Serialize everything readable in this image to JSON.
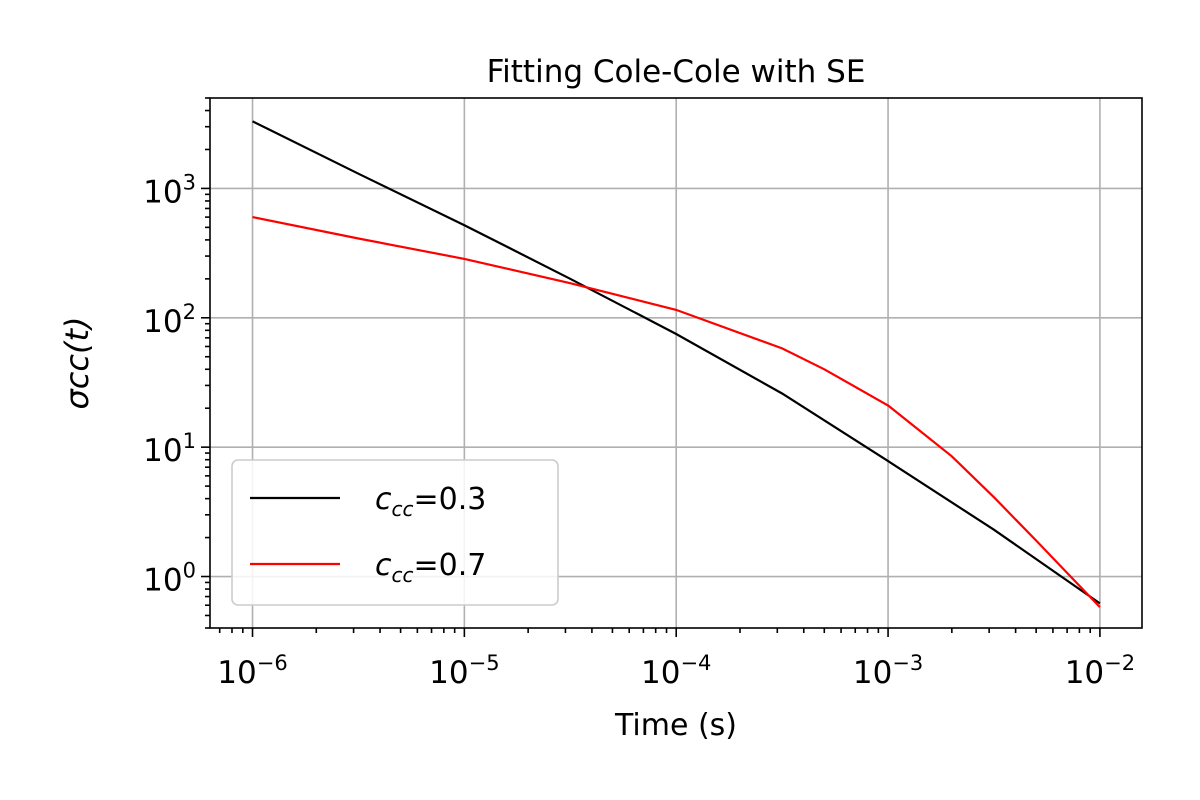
{
  "chart_data": {
    "type": "line",
    "title": "Fitting Cole-Cole with SE",
    "xlabel": "Time (s)",
    "ylabel": "σcc(t)",
    "xscale": "log",
    "yscale": "log",
    "xlim": [
      6.3e-07,
      0.0158
    ],
    "ylim": [
      0.4,
      5000
    ],
    "grid": true,
    "legend_position": "lower-left",
    "x_ticks": [
      {
        "base": "10",
        "exp": "−6",
        "value": 1e-06
      },
      {
        "base": "10",
        "exp": "−5",
        "value": 1e-05
      },
      {
        "base": "10",
        "exp": "−4",
        "value": 0.0001
      },
      {
        "base": "10",
        "exp": "−3",
        "value": 0.001
      },
      {
        "base": "10",
        "exp": "−2",
        "value": 0.01
      }
    ],
    "y_ticks": [
      {
        "base": "10",
        "exp": "0",
        "value": 1
      },
      {
        "base": "10",
        "exp": "1",
        "value": 10
      },
      {
        "base": "10",
        "exp": "2",
        "value": 100
      },
      {
        "base": "10",
        "exp": "3",
        "value": 1000
      }
    ],
    "series": [
      {
        "name": "c_cc=0.3",
        "label_main": "c",
        "label_sub": "cc",
        "label_value": "=0.3",
        "color": "#000000",
        "x": [
          1e-06,
          3.16e-06,
          1e-05,
          3.16e-05,
          0.0001,
          0.000316,
          0.001,
          0.00316,
          0.01
        ],
        "y": [
          3300,
          1300,
          520,
          200,
          75,
          26,
          7.8,
          2.3,
          0.62
        ]
      },
      {
        "name": "c_cc=0.7",
        "label_main": "c",
        "label_sub": "cc",
        "label_value": "=0.7",
        "color": "#ff0000",
        "x": [
          1e-06,
          3.16e-06,
          1e-05,
          3.16e-05,
          0.0001,
          0.000316,
          0.0005,
          0.001,
          0.002,
          0.00316,
          0.005,
          0.01
        ],
        "y": [
          600,
          410,
          285,
          185,
          115,
          58,
          40,
          21,
          8.5,
          4.1,
          1.9,
          0.58
        ]
      }
    ]
  }
}
